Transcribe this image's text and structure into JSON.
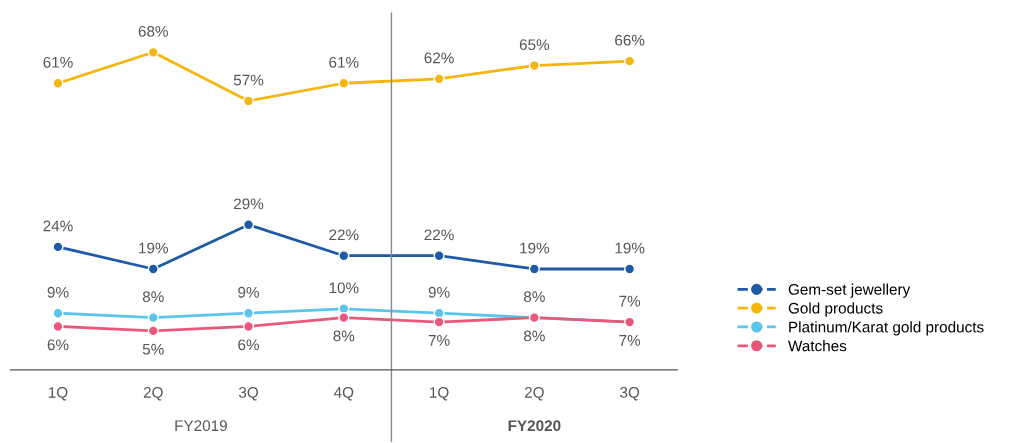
{
  "chart_data": {
    "type": "line",
    "categories": [
      "1Q",
      "2Q",
      "3Q",
      "4Q",
      "1Q",
      "2Q",
      "3Q"
    ],
    "series": [
      {
        "name": "Gem-set jewellery",
        "color": "#1f5aa6",
        "values": [
          24,
          19,
          29,
          22,
          22,
          19,
          19
        ],
        "value_labels": [
          "24%",
          "19%",
          "29%",
          "22%",
          "22%",
          "19%",
          "19%"
        ]
      },
      {
        "name": "Gold products",
        "color": "#f5b50f",
        "values": [
          61,
          68,
          57,
          61,
          62,
          65,
          66
        ],
        "value_labels": [
          "61%",
          "68%",
          "57%",
          "61%",
          "62%",
          "65%",
          "66%"
        ]
      },
      {
        "name": "Platinum/Karat gold products",
        "color": "#5bc4ec",
        "values": [
          9,
          8,
          9,
          10,
          9,
          8,
          7
        ],
        "value_labels": [
          "9%",
          "8%",
          "9%",
          "10%",
          "9%",
          "8%",
          "7%"
        ]
      },
      {
        "name": "Watches",
        "color": "#e8587a",
        "values": [
          6,
          5,
          6,
          8,
          7,
          8,
          7
        ],
        "value_labels": [
          "6%",
          "5%",
          "6%",
          "8%",
          "7%",
          "8%",
          "7%"
        ]
      }
    ],
    "marker": "circle",
    "line_style": "solid",
    "legend": "right",
    "annotations": [
      "FY2019",
      "FY2020"
    ]
  }
}
